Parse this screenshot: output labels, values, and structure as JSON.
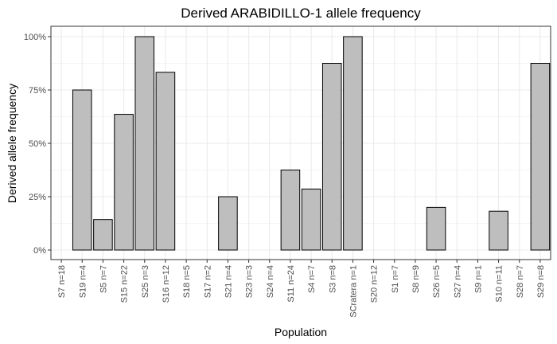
{
  "chart_data": {
    "type": "bar",
    "title": "Derived ARABIDILLO-1 allele frequency",
    "xlabel": "Population",
    "ylabel": "Derived allele frequency",
    "ylim": [
      0,
      1
    ],
    "yticks": [
      {
        "value": 0,
        "label": "0%"
      },
      {
        "value": 0.25,
        "label": "25%"
      },
      {
        "value": 0.5,
        "label": "50%"
      },
      {
        "value": 0.75,
        "label": "75%"
      },
      {
        "value": 1,
        "label": "100%"
      }
    ],
    "grid": true,
    "categories": [
      "S7 n=18",
      "S19 n=4",
      "S5 n=7",
      "S15 n=22",
      "S25 n=3",
      "S16 n=12",
      "S18 n=5",
      "S17 n=2",
      "S21 n=4",
      "S23 n=3",
      "S24 n=4",
      "S11 n=24",
      "S4 n=7",
      "S3 n=8",
      "SCratera n=1",
      "S20 n=12",
      "S1 n=7",
      "S8 n=9",
      "S26 n=5",
      "S27 n=4",
      "S9 n=1",
      "S10 n=11",
      "S28 n=7",
      "S29 n=8"
    ],
    "values": [
      0,
      0.75,
      0.143,
      0.636,
      1,
      0.833,
      0,
      0,
      0.25,
      0,
      0,
      0.375,
      0.286,
      0.875,
      1,
      0,
      0,
      0,
      0.2,
      0,
      0,
      0.182,
      0,
      0.875
    ],
    "colors": {
      "bar_fill": "#bebebe",
      "bar_stroke": "#000000",
      "grid": "#ebebeb",
      "panel_border": "#333333"
    }
  }
}
